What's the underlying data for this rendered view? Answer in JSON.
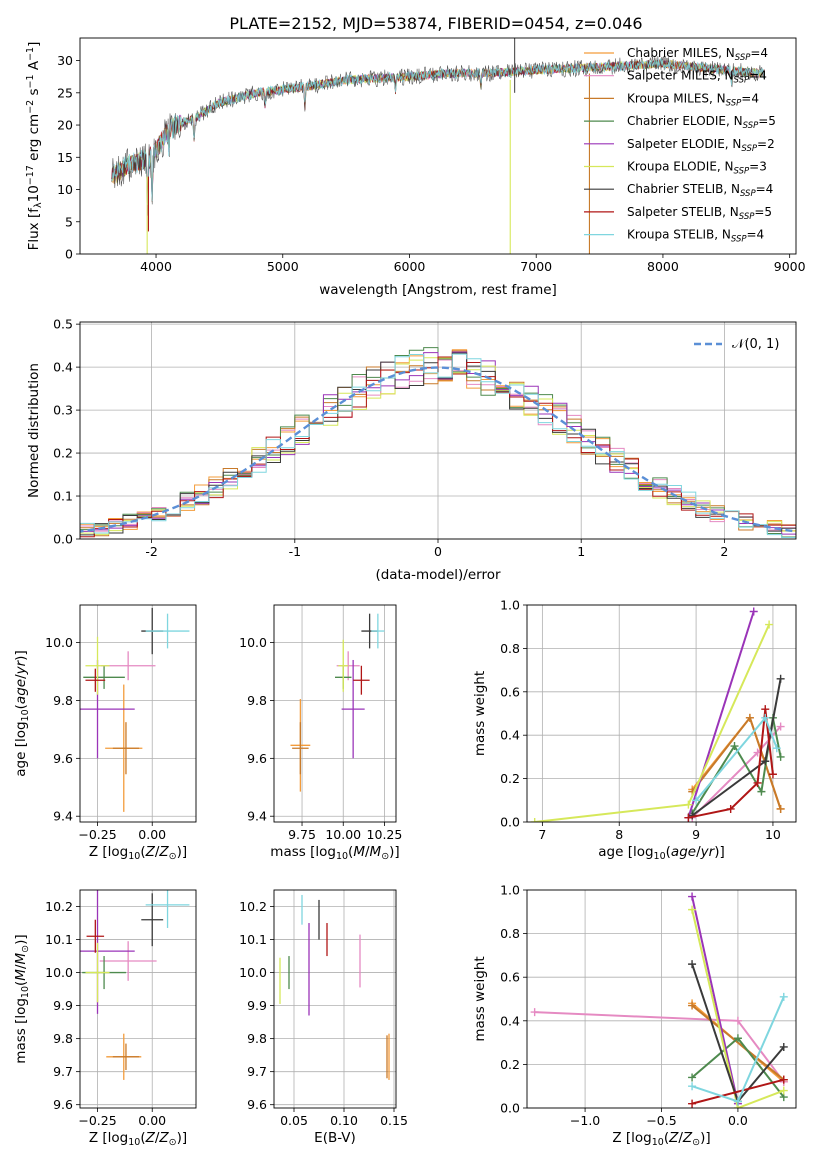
{
  "figure_title": "PLATE=2152, MJD=53874, FIBERID=0454, z=0.046",
  "colors": {
    "axis": "#000000",
    "grid": "#b0b0b0",
    "normal_curve": "#5b8fd6"
  },
  "models": [
    {
      "label": "Chabrier MILES, Nₛₚₚ=4",
      "label_main": "Chabrier MILES, N",
      "label_sub": "SSP",
      "label_tail": "=4",
      "color": "#f39c3b"
    },
    {
      "label_main": "Salpeter MILES, N",
      "label_sub": "SSP",
      "label_tail": "=4",
      "color": "#e58ac2"
    },
    {
      "label_main": "Kroupa MILES, N",
      "label_sub": "SSP",
      "label_tail": "=4",
      "color": "#c87a2a"
    },
    {
      "label_main": "Chabrier ELODIE, N",
      "label_sub": "SSP",
      "label_tail": "=5",
      "color": "#4e8a4e"
    },
    {
      "label_main": "Salpeter ELODIE, N",
      "label_sub": "SSP",
      "label_tail": "=2",
      "color": "#9a34b8"
    },
    {
      "label_main": "Kroupa ELODIE, N",
      "label_sub": "SSP",
      "label_tail": "=3",
      "color": "#d6e85a"
    },
    {
      "label_main": "Chabrier STELIB, N",
      "label_sub": "SSP",
      "label_tail": "=4",
      "color": "#3a3a3a"
    },
    {
      "label_main": "Salpeter STELIB, N",
      "label_sub": "SSP",
      "label_tail": "=5",
      "color": "#b01616"
    },
    {
      "label_main": "Kroupa STELIB, N",
      "label_sub": "SSP",
      "label_tail": "=4",
      "color": "#7fd6df"
    }
  ],
  "chart_data": [
    {
      "id": "spectrum",
      "type": "line",
      "xlabel": "wavelength [Angstrom, rest frame]",
      "ylabel": "Flux [f_λ10^-17 erg cm^-2 s^-1 A^-1]",
      "xlim": [
        3400,
        9050
      ],
      "ylim": [
        0,
        33.5
      ],
      "xticks": [
        4000,
        5000,
        6000,
        7000,
        8000,
        9000
      ],
      "yticks": [
        0,
        5,
        10,
        15,
        20,
        25,
        30
      ],
      "grid": false,
      "legend": "upper right",
      "continuum": [
        [
          3650,
          12
        ],
        [
          3800,
          14
        ],
        [
          3900,
          14.5
        ],
        [
          4000,
          16
        ],
        [
          4100,
          19.5
        ],
        [
          4300,
          21
        ],
        [
          4500,
          23.5
        ],
        [
          4800,
          25
        ],
        [
          5000,
          25.5
        ],
        [
          5200,
          26
        ],
        [
          5500,
          27
        ],
        [
          6000,
          27.5
        ],
        [
          6300,
          28
        ],
        [
          6600,
          28
        ],
        [
          7000,
          28.5
        ],
        [
          7500,
          29
        ],
        [
          8000,
          29.5
        ],
        [
          8500,
          28.5
        ],
        [
          8800,
          28
        ]
      ],
      "absorption_features": [
        [
          3934,
          8
        ],
        [
          3969,
          7
        ],
        [
          4102,
          3
        ],
        [
          4300,
          3
        ],
        [
          4861,
          2
        ],
        [
          5175,
          3
        ],
        [
          5890,
          2
        ],
        [
          6563,
          2
        ],
        [
          8542,
          2
        ]
      ],
      "spikes": [
        [
          3930,
          0
        ],
        [
          3940,
          3.5
        ],
        [
          6795,
          0
        ],
        [
          6830,
          33.5
        ],
        [
          7420,
          0
        ]
      ]
    },
    {
      "id": "residuals",
      "type": "histogram",
      "xlabel": "(data-model)/error",
      "ylabel": "Normed distribution",
      "xlim": [
        -2.5,
        2.5
      ],
      "ylim": [
        0,
        0.505
      ],
      "xticks": [
        -2,
        -1,
        0,
        1,
        2
      ],
      "yticks": [
        0.0,
        0.1,
        0.2,
        0.3,
        0.4,
        0.5
      ],
      "grid": true,
      "legend": "upper right",
      "reference_label": "𝒩(0, 1)",
      "bin_width": 0.1
    },
    {
      "id": "age_vs_Z",
      "type": "errorbar",
      "xlabel": "Z [log₁₀(Z/Z⊙)]",
      "ylabel": "age  [log₁₀(age/yr)]",
      "xlim": [
        -0.33,
        0.2
      ],
      "ylim": [
        9.38,
        10.13
      ],
      "xticks": [
        -0.25,
        0.0
      ],
      "xtick_labels": [
        "−0.25",
        "0.00"
      ],
      "yticks": [
        9.4,
        9.6,
        9.8,
        10.0
      ],
      "grid": true,
      "points": [
        {
          "m": 0,
          "x": -0.13,
          "y": 9.635,
          "xerr": 0.085,
          "yerr": 0.22
        },
        {
          "m": 1,
          "x": -0.11,
          "y": 9.92,
          "xerr": 0.125,
          "yerr": 0.05
        },
        {
          "m": 2,
          "x": -0.12,
          "y": 9.635,
          "xerr": 0.06,
          "yerr": 0.09
        },
        {
          "m": 3,
          "x": -0.22,
          "y": 9.88,
          "xerr": 0.095,
          "yerr": 0.04
        },
        {
          "m": 4,
          "x": -0.25,
          "y": 9.77,
          "xerr": 0.17,
          "yerr": 0.17
        },
        {
          "m": 5,
          "x": -0.25,
          "y": 9.92,
          "xerr": 0.055,
          "yerr": 0.1
        },
        {
          "m": 6,
          "x": 0.0,
          "y": 10.04,
          "xerr": 0.05,
          "yerr": 0.08
        },
        {
          "m": 7,
          "x": -0.26,
          "y": 9.87,
          "xerr": 0.045,
          "yerr": 0.04
        },
        {
          "m": 8,
          "x": 0.07,
          "y": 10.04,
          "xerr": 0.1,
          "yerr": 0.06
        }
      ]
    },
    {
      "id": "age_vs_mass",
      "type": "errorbar",
      "xlabel": "mass [log₁₀(M/M⊙)]",
      "ylabel": "",
      "xlim": [
        9.58,
        10.32
      ],
      "ylim": [
        9.38,
        10.13
      ],
      "xticks": [
        9.75,
        10.0,
        10.25
      ],
      "xtick_labels": [
        "9.75",
        "10.00",
        "10.25"
      ],
      "yticks": [
        9.4,
        9.6,
        9.8,
        10.0
      ],
      "grid": true,
      "points": [
        {
          "m": 0,
          "x": 9.74,
          "y": 9.645,
          "xerr": 0.06,
          "yerr": 0.16
        },
        {
          "m": 1,
          "x": 10.03,
          "y": 9.92,
          "xerr": 0.07,
          "yerr": 0.05
        },
        {
          "m": 2,
          "x": 9.74,
          "y": 9.635,
          "xerr": 0.05,
          "yerr": 0.09
        },
        {
          "m": 3,
          "x": 10.0,
          "y": 9.88,
          "xerr": 0.05,
          "yerr": 0.04
        },
        {
          "m": 4,
          "x": 10.06,
          "y": 9.77,
          "xerr": 0.07,
          "yerr": 0.17
        },
        {
          "m": 5,
          "x": 10.0,
          "y": 9.92,
          "xerr": 0.03,
          "yerr": 0.09
        },
        {
          "m": 6,
          "x": 10.16,
          "y": 10.04,
          "xerr": 0.05,
          "yerr": 0.06
        },
        {
          "m": 7,
          "x": 10.11,
          "y": 9.87,
          "xerr": 0.05,
          "yerr": 0.05
        },
        {
          "m": 8,
          "x": 10.21,
          "y": 10.04,
          "xerr": 0.04,
          "yerr": 0.06
        }
      ]
    },
    {
      "id": "weight_vs_age",
      "type": "line",
      "xlabel": "age  [log₁₀(age/yr)]",
      "ylabel": "mass weight",
      "xlim": [
        6.8,
        10.3
      ],
      "ylim": [
        0,
        1.0
      ],
      "xticks": [
        7,
        8,
        9,
        10
      ],
      "yticks": [
        0.0,
        0.2,
        0.4,
        0.6,
        0.8,
        1.0
      ],
      "grid": true,
      "series": [
        {
          "m": 0,
          "x": [
            8.95,
            9.7,
            10.1
          ],
          "y": [
            0.15,
            0.48,
            0.06
          ]
        },
        {
          "m": 1,
          "x": [
            8.95,
            9.8,
            10.1
          ],
          "y": [
            0.02,
            0.32,
            0.44
          ]
        },
        {
          "m": 2,
          "x": [
            8.95,
            9.7,
            10.1
          ],
          "y": [
            0.14,
            0.48,
            0.06
          ]
        },
        {
          "m": 3,
          "x": [
            8.95,
            9.5,
            9.85,
            10.0,
            10.1
          ],
          "y": [
            0.04,
            0.35,
            0.14,
            0.48,
            0.3
          ]
        },
        {
          "m": 4,
          "x": [
            8.9,
            9.75
          ],
          "y": [
            0.02,
            0.97
          ]
        },
        {
          "m": 5,
          "x": [
            6.9,
            8.9,
            9.95
          ],
          "y": [
            0.0,
            0.08,
            0.91
          ]
        },
        {
          "m": 6,
          "x": [
            8.95,
            9.9,
            10.1
          ],
          "y": [
            0.03,
            0.28,
            0.66
          ]
        },
        {
          "m": 7,
          "x": [
            8.9,
            9.45,
            9.8,
            9.9,
            10.0
          ],
          "y": [
            0.02,
            0.06,
            0.18,
            0.52,
            0.22
          ]
        },
        {
          "m": 8,
          "x": [
            9.0,
            9.9,
            10.05
          ],
          "y": [
            0.1,
            0.48,
            0.34
          ]
        }
      ]
    },
    {
      "id": "mass_vs_Z",
      "type": "errorbar",
      "xlabel": "Z [log₁₀(Z/Z⊙)]",
      "ylabel": "mass [log₁₀(M/M⊙)]",
      "xlim": [
        -0.33,
        0.2
      ],
      "ylim": [
        9.59,
        10.25
      ],
      "xticks": [
        -0.25,
        0.0
      ],
      "xtick_labels": [
        "−0.25",
        "0.00"
      ],
      "yticks": [
        9.6,
        9.7,
        9.8,
        9.9,
        10.0,
        10.1,
        10.2
      ],
      "grid": true,
      "points": [
        {
          "m": 0,
          "x": -0.13,
          "y": 9.745,
          "xerr": 0.08,
          "yerr": 0.07
        },
        {
          "m": 1,
          "x": -0.11,
          "y": 10.035,
          "xerr": 0.13,
          "yerr": 0.06
        },
        {
          "m": 2,
          "x": -0.12,
          "y": 9.745,
          "xerr": 0.06,
          "yerr": 0.04
        },
        {
          "m": 3,
          "x": -0.22,
          "y": 10.0,
          "xerr": 0.1,
          "yerr": 0.05
        },
        {
          "m": 4,
          "x": -0.25,
          "y": 10.065,
          "xerr": 0.17,
          "yerr": 0.19
        },
        {
          "m": 5,
          "x": -0.25,
          "y": 10.0,
          "xerr": 0.055,
          "yerr": 0.09
        },
        {
          "m": 6,
          "x": 0.0,
          "y": 10.16,
          "xerr": 0.05,
          "yerr": 0.08
        },
        {
          "m": 7,
          "x": -0.26,
          "y": 10.11,
          "xerr": 0.04,
          "yerr": 0.05
        },
        {
          "m": 8,
          "x": 0.07,
          "y": 10.205,
          "xerr": 0.1,
          "yerr": 0.07
        }
      ]
    },
    {
      "id": "mass_vs_ebv",
      "type": "errorbar",
      "xlabel": "E(B-V)",
      "ylabel": "",
      "xlim": [
        0.03,
        0.152
      ],
      "ylim": [
        9.59,
        10.25
      ],
      "xticks": [
        0.05,
        0.1,
        0.15
      ],
      "xtick_labels": [
        "0.05",
        "0.10",
        "0.15"
      ],
      "yticks": [
        9.6,
        9.7,
        9.8,
        9.9,
        10.0,
        10.1,
        10.2
      ],
      "grid": true,
      "points": [
        {
          "m": 0,
          "x": 0.145,
          "y": 9.745,
          "xerr": 0.0,
          "yerr": 0.07
        },
        {
          "m": 1,
          "x": 0.116,
          "y": 10.035,
          "xerr": 0.0,
          "yerr": 0.08
        },
        {
          "m": 2,
          "x": 0.143,
          "y": 9.745,
          "xerr": 0.0,
          "yerr": 0.065
        },
        {
          "m": 3,
          "x": 0.045,
          "y": 10.0,
          "xerr": 0.0,
          "yerr": 0.05
        },
        {
          "m": 4,
          "x": 0.065,
          "y": 10.01,
          "xerr": 0.0,
          "yerr": 0.14
        },
        {
          "m": 5,
          "x": 0.036,
          "y": 9.975,
          "xerr": 0.0,
          "yerr": 0.07
        },
        {
          "m": 6,
          "x": 0.075,
          "y": 10.16,
          "xerr": 0.0,
          "yerr": 0.06
        },
        {
          "m": 7,
          "x": 0.083,
          "y": 10.1,
          "xerr": 0.0,
          "yerr": 0.05
        },
        {
          "m": 8,
          "x": 0.058,
          "y": 10.19,
          "xerr": 0.0,
          "yerr": 0.045
        }
      ]
    },
    {
      "id": "weight_vs_Z",
      "type": "line",
      "xlabel": "Z [log₁₀(Z/Z⊙)]",
      "ylabel": "mass weight",
      "xlim": [
        -1.38,
        0.38
      ],
      "ylim": [
        0,
        1.0
      ],
      "xticks": [
        -1.0,
        -0.5,
        0.0
      ],
      "xtick_labels": [
        "−1.0",
        "−0.5",
        "0.0"
      ],
      "yticks": [
        0.0,
        0.2,
        0.4,
        0.6,
        0.8,
        1.0
      ],
      "grid": true,
      "series": [
        {
          "m": 0,
          "x": [
            -0.3,
            0.3
          ],
          "y": [
            0.48,
            0.12
          ]
        },
        {
          "m": 1,
          "x": [
            -1.33,
            0.0,
            0.3
          ],
          "y": [
            0.44,
            0.4,
            0.12
          ]
        },
        {
          "m": 2,
          "x": [
            -0.3,
            0.3
          ],
          "y": [
            0.47,
            0.13
          ]
        },
        {
          "m": 3,
          "x": [
            -0.3,
            0.0,
            0.3
          ],
          "y": [
            0.14,
            0.32,
            0.05
          ]
        },
        {
          "m": 4,
          "x": [
            -0.3,
            0.0
          ],
          "y": [
            0.97,
            0.02
          ]
        },
        {
          "m": 5,
          "x": [
            -0.3,
            0.0,
            0.3
          ],
          "y": [
            0.91,
            0.0,
            0.08
          ]
        },
        {
          "m": 6,
          "x": [
            -0.3,
            0.0,
            0.3
          ],
          "y": [
            0.66,
            0.03,
            0.28
          ]
        },
        {
          "m": 7,
          "x": [
            -0.3,
            0.3
          ],
          "y": [
            0.02,
            0.13
          ]
        },
        {
          "m": 8,
          "x": [
            -0.3,
            0.0,
            0.3
          ],
          "y": [
            0.1,
            0.03,
            0.51
          ]
        }
      ]
    }
  ]
}
